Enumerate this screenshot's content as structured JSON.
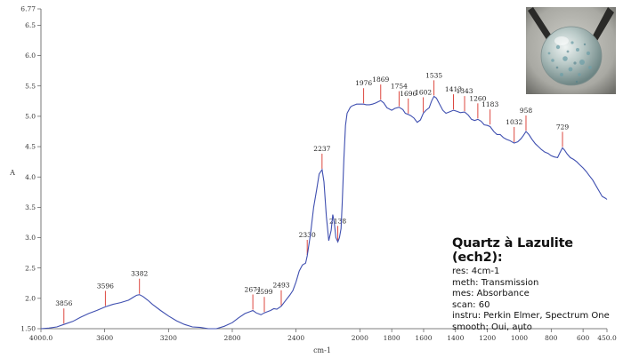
{
  "chart_data": {
    "type": "line",
    "title": "",
    "xlabel": "cm-1",
    "ylabel": "A",
    "xlim": [
      4000,
      450
    ],
    "ylim": [
      1.5,
      6.77
    ],
    "x_ticks": [
      4000,
      3600,
      3200,
      2800,
      2400,
      2000,
      1800,
      1600,
      1400,
      1200,
      1000,
      800,
      600,
      450
    ],
    "x_tick_labels": [
      "4000.0",
      "3600",
      "3200",
      "2800",
      "2400",
      "2000",
      "1800",
      "1600",
      "1400",
      "1200",
      "1000",
      "800",
      "600",
      "450.0"
    ],
    "y_ticks": [
      1.5,
      2.0,
      2.5,
      3.0,
      3.5,
      4.0,
      4.5,
      5.0,
      5.5,
      6.0,
      6.5,
      6.77
    ],
    "y_tick_labels": [
      "1.50",
      "2.0",
      "2.5",
      "3.0",
      "3.5",
      "4.0",
      "4.5",
      "5.0",
      "5.5",
      "6.0",
      "6.5",
      "6.77"
    ],
    "grid": false,
    "line_color": "#3f4fb0",
    "marker_color": "#d9342b",
    "series": [
      {
        "x": [
          4000,
          3950,
          3900,
          3856,
          3800,
          3750,
          3700,
          3650,
          3596,
          3550,
          3500,
          3450,
          3420,
          3400,
          3382,
          3360,
          3330,
          3300,
          3250,
          3200,
          3150,
          3100,
          3050,
          3000,
          2950,
          2900,
          2850,
          2800,
          2760,
          2720,
          2690,
          2671,
          2650,
          2620,
          2599,
          2580,
          2560,
          2540,
          2520,
          2493,
          2470,
          2440,
          2420,
          2400,
          2380,
          2360,
          2340,
          2330,
          2310,
          2290,
          2270,
          2255,
          2237,
          2225,
          2210,
          2195,
          2180,
          2170,
          2160,
          2150,
          2138,
          2128,
          2118,
          2110,
          2100,
          2090,
          2080,
          2070,
          2060,
          2050,
          2040,
          2030,
          2020,
          2010,
          2000,
          1990,
          1976,
          1960,
          1940,
          1920,
          1900,
          1869,
          1850,
          1830,
          1800,
          1780,
          1754,
          1730,
          1715,
          1696,
          1680,
          1660,
          1640,
          1620,
          1602,
          1585,
          1565,
          1550,
          1535,
          1520,
          1500,
          1480,
          1460,
          1440,
          1413,
          1390,
          1370,
          1343,
          1320,
          1300,
          1280,
          1260,
          1240,
          1220,
          1200,
          1183,
          1160,
          1140,
          1120,
          1100,
          1080,
          1060,
          1040,
          1032,
          1010,
          990,
          975,
          958,
          940,
          920,
          900,
          880,
          860,
          840,
          820,
          800,
          780,
          760,
          745,
          729,
          715,
          700,
          680,
          660,
          640,
          620,
          600,
          580,
          560,
          540,
          520,
          500,
          480,
          460,
          450
        ],
        "y": [
          1.5,
          1.51,
          1.53,
          1.57,
          1.62,
          1.69,
          1.75,
          1.8,
          1.86,
          1.9,
          1.93,
          1.97,
          2.02,
          2.05,
          2.06,
          2.03,
          1.97,
          1.9,
          1.8,
          1.71,
          1.63,
          1.57,
          1.53,
          1.52,
          1.5,
          1.5,
          1.54,
          1.6,
          1.68,
          1.75,
          1.78,
          1.8,
          1.76,
          1.73,
          1.76,
          1.78,
          1.8,
          1.83,
          1.82,
          1.87,
          1.95,
          2.05,
          2.13,
          2.27,
          2.45,
          2.55,
          2.58,
          2.7,
          3.05,
          3.5,
          3.8,
          4.05,
          4.12,
          3.92,
          3.35,
          2.95,
          3.12,
          3.38,
          3.25,
          3.0,
          2.93,
          3.0,
          3.15,
          3.6,
          4.3,
          4.85,
          5.05,
          5.1,
          5.15,
          5.17,
          5.18,
          5.19,
          5.2,
          5.2,
          5.2,
          5.2,
          5.2,
          5.19,
          5.19,
          5.2,
          5.22,
          5.26,
          5.22,
          5.14,
          5.1,
          5.13,
          5.15,
          5.11,
          5.05,
          5.03,
          5.01,
          4.97,
          4.9,
          4.94,
          5.05,
          5.1,
          5.14,
          5.25,
          5.33,
          5.3,
          5.2,
          5.1,
          5.05,
          5.07,
          5.1,
          5.08,
          5.06,
          5.07,
          5.02,
          4.95,
          4.93,
          4.95,
          4.92,
          4.86,
          4.85,
          4.83,
          4.75,
          4.7,
          4.7,
          4.65,
          4.62,
          4.6,
          4.57,
          4.56,
          4.58,
          4.63,
          4.68,
          4.75,
          4.7,
          4.62,
          4.55,
          4.5,
          4.45,
          4.41,
          4.39,
          4.35,
          4.33,
          4.32,
          4.4,
          4.48,
          4.44,
          4.38,
          4.32,
          4.29,
          4.25,
          4.2,
          4.15,
          4.09,
          4.02,
          3.95,
          3.86,
          3.77,
          3.68,
          3.65,
          3.63
        ]
      }
    ],
    "annotations": [
      {
        "label": "3856",
        "x": 3856,
        "y": 1.57
      },
      {
        "label": "3596",
        "x": 3596,
        "y": 1.86
      },
      {
        "label": "3382",
        "x": 3382,
        "y": 2.06
      },
      {
        "label": "2671",
        "x": 2671,
        "y": 1.8
      },
      {
        "label": "2599",
        "x": 2599,
        "y": 1.76
      },
      {
        "label": "2493",
        "x": 2493,
        "y": 1.87
      },
      {
        "label": "2330",
        "x": 2330,
        "y": 2.7
      },
      {
        "label": "2237",
        "x": 2237,
        "y": 4.12
      },
      {
        "label": "2138",
        "x": 2138,
        "y": 2.93
      },
      {
        "label": "1976",
        "x": 1976,
        "y": 5.2
      },
      {
        "label": "1869",
        "x": 1869,
        "y": 5.26
      },
      {
        "label": "1754",
        "x": 1754,
        "y": 5.15
      },
      {
        "label": "1696",
        "x": 1696,
        "y": 5.03
      },
      {
        "label": "1602",
        "x": 1602,
        "y": 5.05
      },
      {
        "label": "1535",
        "x": 1535,
        "y": 5.33
      },
      {
        "label": "1413",
        "x": 1413,
        "y": 5.1
      },
      {
        "label": "1343",
        "x": 1343,
        "y": 5.07
      },
      {
        "label": "1260",
        "x": 1260,
        "y": 4.95
      },
      {
        "label": "1183",
        "x": 1183,
        "y": 4.85
      },
      {
        "label": "1032",
        "x": 1032,
        "y": 4.56
      },
      {
        "label": "958",
        "x": 958,
        "y": 4.75
      },
      {
        "label": "729",
        "x": 729,
        "y": 4.48
      }
    ]
  },
  "info": {
    "title": "Quartz à Lazulite (ech2):",
    "lines": [
      "res: 4cm-1",
      "meth: Transmission",
      "mes: Absorbance",
      "scan: 60",
      "instru: Perkin Elmer, Spectrum One",
      "smooth: Oui, auto"
    ]
  },
  "photo": {
    "subject": "translucent blue-speckled sphere held in tweezers"
  }
}
